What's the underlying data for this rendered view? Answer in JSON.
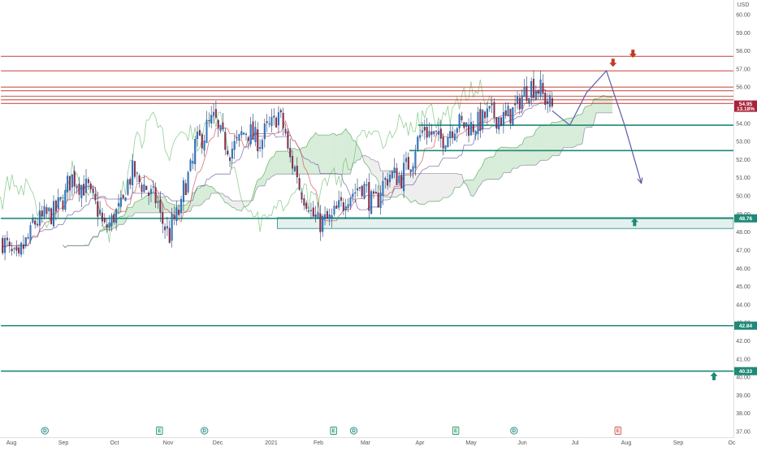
{
  "chart_data": {
    "type": "candlestick",
    "currency": "USD",
    "y_axis": {
      "range": [
        37.0,
        60.0
      ],
      "ticks": [
        "60.00",
        "59.00",
        "58.00",
        "57.00",
        "56.00",
        "55.00",
        "54.00",
        "53.00",
        "52.00",
        "51.00",
        "50.00",
        "49.00",
        "48.00",
        "47.00",
        "46.00",
        "45.00",
        "44.00",
        "43.00",
        "42.00",
        "41.00",
        "40.00",
        "39.00",
        "38.00",
        "37.00"
      ]
    },
    "x_axis": {
      "ticks": [
        {
          "label": "Aug",
          "date": "2020-08-01"
        },
        {
          "label": "Sep",
          "date": "2020-09-01"
        },
        {
          "label": "Oct",
          "date": "2020-10-01"
        },
        {
          "label": "Nov",
          "date": "2020-11-01"
        },
        {
          "label": "Dec",
          "date": "2020-12-01"
        },
        {
          "label": "2021",
          "date": "2021-01-01"
        },
        {
          "label": "Feb",
          "date": "2021-02-01"
        },
        {
          "label": "Mar",
          "date": "2021-03-01"
        },
        {
          "label": "Apr",
          "date": "2021-04-01"
        },
        {
          "label": "May",
          "date": "2021-05-01"
        },
        {
          "label": "Jun",
          "date": "2021-06-01"
        },
        {
          "label": "Jul",
          "date": "2021-07-01"
        },
        {
          "label": "Aug",
          "date": "2021-08-01"
        },
        {
          "label": "Sep",
          "date": "2021-09-01"
        },
        {
          "label": "Oc",
          "date": "2021-10-01"
        }
      ]
    },
    "price_path": [
      {
        "date": "2020-07-22",
        "close": 47.5
      },
      {
        "date": "2020-07-31",
        "close": 46.3
      },
      {
        "date": "2020-08-10",
        "close": 48.5
      },
      {
        "date": "2020-08-24",
        "close": 49.2
      },
      {
        "date": "2020-09-02",
        "close": 51.0
      },
      {
        "date": "2020-09-12",
        "close": 50.3
      },
      {
        "date": "2020-09-22",
        "close": 48.2
      },
      {
        "date": "2020-10-01",
        "close": 49.3
      },
      {
        "date": "2020-10-08",
        "close": 51.3
      },
      {
        "date": "2020-10-22",
        "close": 49.8
      },
      {
        "date": "2020-10-30",
        "close": 47.8
      },
      {
        "date": "2020-11-06",
        "close": 49.3
      },
      {
        "date": "2020-11-16",
        "close": 52.8
      },
      {
        "date": "2020-11-26",
        "close": 54.2
      },
      {
        "date": "2020-12-06",
        "close": 52.4
      },
      {
        "date": "2020-12-16",
        "close": 53.6
      },
      {
        "date": "2020-12-24",
        "close": 53.0
      },
      {
        "date": "2021-01-05",
        "close": 54.5
      },
      {
        "date": "2021-01-12",
        "close": 52.0
      },
      {
        "date": "2021-01-20",
        "close": 50.0
      },
      {
        "date": "2021-01-28",
        "close": 48.5
      },
      {
        "date": "2021-02-06",
        "close": 48.7
      },
      {
        "date": "2021-02-15",
        "close": 50.0
      },
      {
        "date": "2021-02-24",
        "close": 50.6
      },
      {
        "date": "2021-03-03",
        "close": 49.5
      },
      {
        "date": "2021-03-12",
        "close": 51.2
      },
      {
        "date": "2021-03-20",
        "close": 51.0
      },
      {
        "date": "2021-03-28",
        "close": 52.5
      },
      {
        "date": "2021-04-02",
        "close": 53.8
      },
      {
        "date": "2021-04-12",
        "close": 53.0
      },
      {
        "date": "2021-04-22",
        "close": 54.0
      },
      {
        "date": "2021-05-02",
        "close": 53.8
      },
      {
        "date": "2021-05-12",
        "close": 54.5
      },
      {
        "date": "2021-05-22",
        "close": 54.2
      },
      {
        "date": "2021-05-29",
        "close": 55.0
      },
      {
        "date": "2021-06-05",
        "close": 56.2
      },
      {
        "date": "2021-06-12",
        "close": 55.8
      },
      {
        "date": "2021-06-18",
        "close": 54.9
      }
    ],
    "current_price": {
      "value": "54.95",
      "change": "13.18%"
    },
    "horizontal_levels": [
      {
        "price": 57.7,
        "color": "#c0392b",
        "start": "2020-07-20"
      },
      {
        "price": 56.9,
        "color": "#c0392b",
        "start": "2020-07-20"
      },
      {
        "price": 56.0,
        "color": "#c0392b",
        "start": "2020-07-20"
      },
      {
        "price": 55.8,
        "color": "#c0392b",
        "start": "2020-07-20"
      },
      {
        "price": 55.5,
        "color": "#c0392b",
        "start": "2020-07-20"
      },
      {
        "price": 55.3,
        "color": "#c0392b",
        "start": "2020-07-20"
      },
      {
        "price": 55.1,
        "color": "#c0392b",
        "start": "2020-07-20"
      },
      {
        "price": 53.9,
        "color": "#1e8a77",
        "start": "2021-03-31"
      },
      {
        "price": 52.5,
        "color": "#1e8a77",
        "start": "2021-03-26"
      },
      {
        "price": 48.76,
        "color": "#1e8a77",
        "start": "2020-07-20"
      },
      {
        "price": 42.84,
        "color": "#1e8a77",
        "start": "2020-07-20"
      },
      {
        "price": 40.33,
        "color": "#1e8a77",
        "start": "2020-07-20"
      }
    ],
    "price_labels": [
      {
        "value": "48.76",
        "price": 48.76
      },
      {
        "value": "42.84",
        "price": 42.84
      },
      {
        "value": "40.33",
        "price": 40.33
      }
    ],
    "zones": [
      {
        "from": 48.2,
        "to": 48.8,
        "start": "2021-01-05",
        "color": "#1e8a77"
      }
    ],
    "projection_path": [
      {
        "date": "2021-06-18",
        "price": 54.7
      },
      {
        "date": "2021-06-28",
        "price": 53.9
      },
      {
        "date": "2021-07-08",
        "price": 55.7
      },
      {
        "date": "2021-07-20",
        "price": 56.9
      },
      {
        "date": "2021-07-31",
        "price": 53.9
      },
      {
        "date": "2021-08-10",
        "price": 50.7
      }
    ],
    "arrows": [
      {
        "direction": "down",
        "date": "2021-07-24",
        "price": 57.3,
        "color": "#c0392b"
      },
      {
        "direction": "down",
        "date": "2021-08-05",
        "price": 57.8,
        "color": "#c0392b"
      },
      {
        "direction": "up",
        "date": "2021-08-06",
        "price": 48.6,
        "color": "#1e8a77"
      },
      {
        "direction": "up",
        "date": "2021-09-21",
        "price": 40.1,
        "color": "#1e8a77"
      }
    ],
    "event_markers": [
      {
        "label": "D",
        "date": "2020-08-21",
        "type": "dividend"
      },
      {
        "label": "E",
        "date": "2020-10-27",
        "type": "earnings"
      },
      {
        "label": "D",
        "date": "2020-11-23",
        "type": "dividend"
      },
      {
        "label": "E",
        "date": "2021-02-10",
        "type": "earnings"
      },
      {
        "label": "D",
        "date": "2021-02-22",
        "type": "dividend"
      },
      {
        "label": "E",
        "date": "2021-04-22",
        "type": "earnings"
      },
      {
        "label": "D",
        "date": "2021-05-27",
        "type": "dividend"
      },
      {
        "label": "E",
        "date": "2021-07-27",
        "type": "upcoming"
      }
    ],
    "indicators": [
      "Ichimoku Cloud"
    ],
    "grid": false,
    "legend": "none"
  }
}
